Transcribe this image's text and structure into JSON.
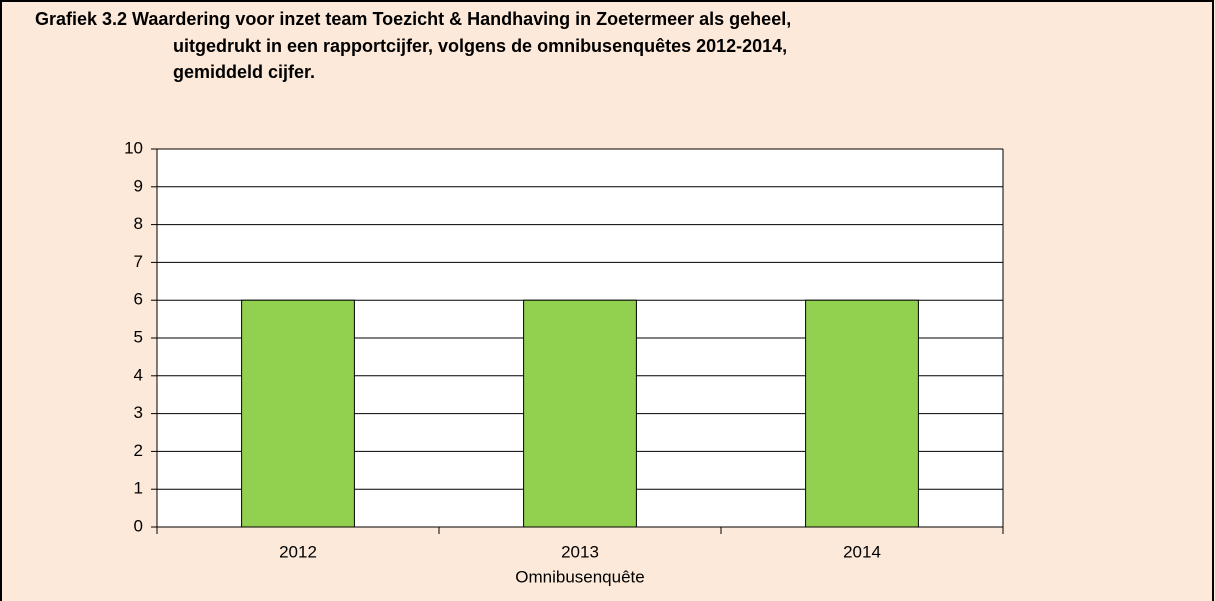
{
  "chart_data": {
    "type": "bar",
    "title": [
      "Grafiek 3.2  Waardering voor inzet team Toezicht & Handhaving in Zoetermeer als geheel,",
      "uitgedrukt in een rapportcijfer, volgens de omnibusenquêtes 2012-2014,",
      "gemiddeld cijfer."
    ],
    "xlabel": "Omnibusenquête",
    "categories": [
      "2012",
      "2013",
      "2014"
    ],
    "values": [
      6,
      6,
      6
    ],
    "color": "#92d050",
    "ylim": [
      0,
      10
    ],
    "yticks": [
      0,
      1,
      2,
      3,
      4,
      5,
      6,
      7,
      8,
      9,
      10
    ],
    "grid": true
  }
}
